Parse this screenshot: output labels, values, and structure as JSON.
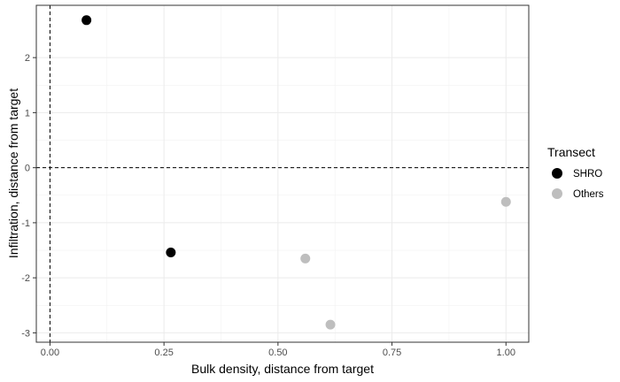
{
  "chart_data": {
    "type": "scatter",
    "xlabel": "Bulk density, distance from target",
    "ylabel": "Infiltration, distance from target",
    "xlim": [
      -0.03,
      1.05
    ],
    "ylim": [
      -3.17,
      2.95
    ],
    "x_ticks": [
      0.0,
      0.25,
      0.5,
      0.75,
      1.0
    ],
    "x_tick_labels": [
      "0.00",
      "0.25",
      "0.50",
      "0.75",
      "1.00"
    ],
    "y_ticks": [
      -3,
      -2,
      -1,
      0,
      1,
      2
    ],
    "y_tick_labels": [
      "-3",
      "-2",
      "-1",
      "0",
      "1",
      "2"
    ],
    "reference_lines": [
      {
        "axis": "x",
        "value": 0,
        "style": "dashed"
      },
      {
        "axis": "y",
        "value": 0,
        "style": "dashed"
      }
    ],
    "grid": true,
    "legend": {
      "title": "Transect",
      "position": "right"
    },
    "series": [
      {
        "name": "SHRO",
        "color": "#000000",
        "points": [
          {
            "x": 0.08,
            "y": 2.68
          },
          {
            "x": 0.265,
            "y": -1.54
          }
        ]
      },
      {
        "name": "Others",
        "color": "#bebebe",
        "points": [
          {
            "x": 0.56,
            "y": -1.65
          },
          {
            "x": 0.615,
            "y": -2.85
          },
          {
            "x": 1.0,
            "y": -0.62
          }
        ]
      }
    ]
  }
}
